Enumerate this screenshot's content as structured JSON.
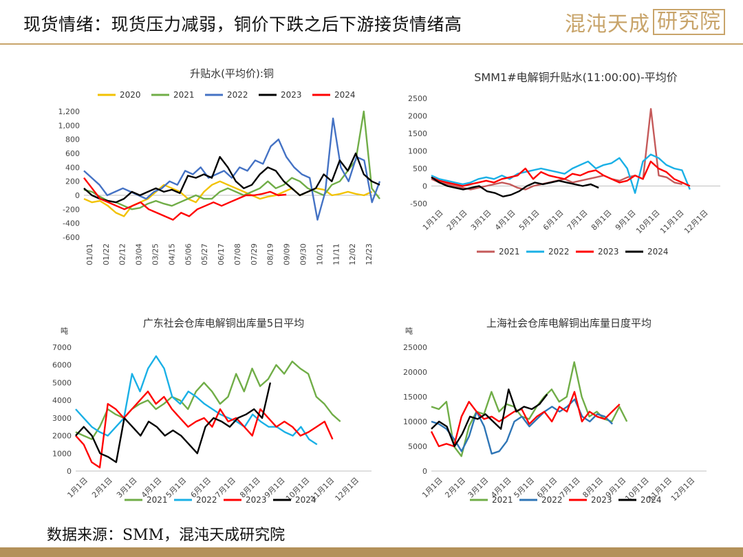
{
  "header": {
    "title": "现货情绪：现货压力减弱，铜价下跌之后下游接货情绪高",
    "logo_text": "混沌天成",
    "logo_box_text": "研究院"
  },
  "footer": {
    "source": "数据来源：SMM，混沌天成研究院"
  },
  "colors": {
    "accent": "#c8a46a",
    "footer_bar": "#b3915a"
  },
  "chart_data": [
    {
      "type": "line",
      "title": "升贴水(平均价):铜",
      "ylim": [
        -600,
        1200
      ],
      "yticks": [
        "1,200",
        "1,000",
        "800",
        "600",
        "400",
        "200",
        "0",
        "-200",
        "-400",
        "-600"
      ],
      "ytick_values": [
        1200,
        1000,
        800,
        600,
        400,
        200,
        0,
        -200,
        -400,
        -600
      ],
      "xticks": [
        "01/01",
        "01/22",
        "02/12",
        "03/04",
        "03/25",
        "04/15",
        "05/06",
        "05/27",
        "06/17",
        "07/08",
        "07/29",
        "08/19",
        "09/09",
        "09/30",
        "10/21",
        "11/11",
        "12/02",
        "12/23"
      ],
      "legend": "top",
      "series": [
        {
          "name": "2020",
          "color": "#f2c200",
          "values": [
            -50,
            -100,
            -80,
            -150,
            -250,
            -300,
            -150,
            -100,
            -50,
            50,
            150,
            100,
            50,
            -50,
            -100,
            50,
            150,
            200,
            150,
            100,
            50,
            0,
            -50,
            -20,
            0,
            50,
            100,
            0,
            50,
            100,
            80,
            0,
            20,
            50,
            20,
            0,
            50
          ]
        },
        {
          "name": "2021",
          "color": "#70ad47",
          "values": [
            80,
            50,
            -20,
            -80,
            -100,
            -150,
            -200,
            -180,
            -120,
            -80,
            -120,
            -150,
            -100,
            -50,
            0,
            -50,
            -50,
            50,
            100,
            50,
            0,
            50,
            100,
            200,
            100,
            150,
            250,
            200,
            100,
            50,
            0,
            150,
            200,
            350,
            500,
            1200,
            100,
            -50
          ]
        },
        {
          "name": "2022",
          "color": "#4472c4",
          "values": [
            350,
            250,
            150,
            0,
            50,
            100,
            50,
            0,
            -50,
            50,
            100,
            200,
            150,
            350,
            300,
            400,
            250,
            300,
            350,
            250,
            400,
            350,
            500,
            450,
            700,
            800,
            550,
            400,
            300,
            250,
            -350,
            50,
            1100,
            400,
            200,
            550,
            500,
            -100,
            200
          ]
        },
        {
          "name": "2023",
          "color": "#000000",
          "values": [
            100,
            0,
            -50,
            -80,
            -100,
            -50,
            50,
            0,
            50,
            100,
            50,
            80,
            30,
            280,
            250,
            300,
            250,
            550,
            400,
            200,
            100,
            150,
            300,
            400,
            350,
            200,
            100,
            0,
            50,
            100,
            300,
            200,
            500,
            350,
            600,
            300,
            200,
            150
          ]
        },
        {
          "name": "2024",
          "color": "#ff0000",
          "values": [
            250,
            100,
            -50,
            -100,
            -150,
            -200,
            -150,
            -100,
            -200,
            -250,
            -300,
            -350,
            -250,
            -300,
            -200,
            -150,
            -100,
            -150,
            -100,
            -50,
            0,
            0,
            20,
            50,
            0,
            10
          ]
        }
      ]
    },
    {
      "type": "line",
      "title": "SMM1#电解铜升贴水(11:00:00)-平均价",
      "ylim": [
        -500,
        2500
      ],
      "yticks": [
        "2500",
        "2000",
        "1500",
        "1000",
        "500",
        "0",
        "-500"
      ],
      "ytick_values": [
        2500,
        2000,
        1500,
        1000,
        500,
        0,
        -500
      ],
      "xticks": [
        "1月1日",
        "2月1日",
        "3月1日",
        "4月1日",
        "5月1日",
        "6月1日",
        "7月1日",
        "8月1日",
        "9月1日",
        "10月1日",
        "11月1日",
        "12月1日"
      ],
      "legend": "bottom",
      "series": [
        {
          "name": "2021",
          "color": "#c55a5a",
          "values": [
            200,
            100,
            50,
            0,
            -50,
            -100,
            -50,
            0,
            50,
            100,
            50,
            -50,
            -100,
            0,
            50,
            100,
            150,
            200,
            100,
            150,
            200,
            250,
            300,
            200,
            150,
            250,
            300,
            200,
            2200,
            300,
            250,
            100,
            50
          ]
        },
        {
          "name": "2022",
          "color": "#1ab0e6",
          "values": [
            300,
            200,
            150,
            100,
            50,
            100,
            200,
            250,
            200,
            300,
            200,
            350,
            400,
            450,
            500,
            450,
            400,
            350,
            500,
            600,
            700,
            500,
            600,
            650,
            800,
            500,
            -200,
            700,
            900,
            800,
            600,
            500,
            450,
            -100
          ]
        },
        {
          "name": "2023",
          "color": "#ff0000",
          "values": [
            250,
            150,
            100,
            50,
            0,
            50,
            100,
            150,
            100,
            200,
            250,
            300,
            500,
            200,
            400,
            300,
            250,
            200,
            350,
            300,
            400,
            450,
            300,
            200,
            100,
            150,
            300,
            200,
            700,
            500,
            400,
            200,
            100,
            0
          ]
        },
        {
          "name": "2024",
          "color": "#000000",
          "values": [
            250,
            100,
            0,
            -50,
            -100,
            -50,
            0,
            -150,
            -200,
            -300,
            -250,
            -150,
            0,
            100,
            50,
            100,
            150,
            100,
            50,
            0,
            50,
            -50
          ]
        }
      ]
    },
    {
      "type": "line",
      "title": "广东社会仓库电解铜出库量5日平均",
      "unit": "吨",
      "ylim": [
        0,
        7000
      ],
      "yticks": [
        "7000",
        "6000",
        "5000",
        "4000",
        "3000",
        "2000",
        "1000",
        "0"
      ],
      "ytick_values": [
        7000,
        6000,
        5000,
        4000,
        3000,
        2000,
        1000,
        0
      ],
      "xticks": [
        "1月1日",
        "2月1日",
        "3月1日",
        "4月1日",
        "5月1日",
        "6月1日",
        "7月1日",
        "8月1日",
        "9月1日",
        "10月1日",
        "11月1日",
        "12月1日"
      ],
      "legend": "bottom",
      "series": [
        {
          "name": "2021",
          "color": "#70ad47",
          "values": [
            2200,
            2000,
            1800,
            2500,
            3500,
            3200,
            3000,
            3500,
            3800,
            4000,
            3500,
            3800,
            4200,
            4000,
            3500,
            4500,
            5000,
            4500,
            3800,
            4200,
            5500,
            4500,
            5800,
            4800,
            5200,
            6000,
            5500,
            6200,
            5800,
            5500,
            4200,
            3800,
            3200,
            2800
          ]
        },
        {
          "name": "2022",
          "color": "#1ab0e6",
          "values": [
            3500,
            3000,
            2500,
            2200,
            2000,
            2500,
            3000,
            5500,
            4500,
            5800,
            6500,
            5800,
            4200,
            3800,
            4500,
            4200,
            3800,
            3500,
            3200,
            3000,
            2800,
            2500,
            3200,
            2800,
            2500,
            2500,
            2200,
            2000,
            2500,
            1800,
            1500
          ]
        },
        {
          "name": "2023",
          "color": "#ff0000",
          "values": [
            2000,
            1500,
            500,
            200,
            3800,
            3500,
            3000,
            3500,
            4000,
            4500,
            3800,
            4200,
            3500,
            3000,
            2500,
            2800,
            3000,
            2500,
            3500,
            2800,
            3000,
            2500,
            2000,
            3500,
            3000,
            2500,
            2800,
            2500,
            2000,
            2200,
            2500,
            2800,
            1800
          ]
        },
        {
          "name": "2024",
          "color": "#000000",
          "values": [
            2000,
            2500,
            2000,
            1000,
            800,
            500,
            3000,
            2500,
            2000,
            2800,
            2500,
            2000,
            2300,
            2000,
            1500,
            1000,
            2500,
            3000,
            2800,
            2500,
            3000,
            3200,
            3500,
            3000,
            5000
          ]
        }
      ]
    },
    {
      "type": "line",
      "title": "上海社会仓库电解铜出库量日度平均",
      "unit": "吨",
      "ylim": [
        0,
        25000
      ],
      "yticks": [
        "25000",
        "20000",
        "15000",
        "10000",
        "5000",
        "0"
      ],
      "ytick_values": [
        25000,
        20000,
        15000,
        10000,
        5000,
        0
      ],
      "xticks": [
        "1月1日",
        "2月1日",
        "3月1日",
        "4月1日",
        "5月1日",
        "6月1日",
        "7月1日",
        "8月1日",
        "9月1日",
        "10月1日",
        "11月1日",
        "12月1日"
      ],
      "legend": "bottom",
      "series": [
        {
          "name": "2021",
          "color": "#70ad47",
          "values": [
            13000,
            12500,
            14000,
            5000,
            3000,
            9000,
            12000,
            11500,
            16000,
            12000,
            13500,
            13000,
            11000,
            10500,
            13000,
            15000,
            16500,
            14000,
            15000,
            22000,
            15000,
            11000,
            12000,
            10500,
            10000,
            13000,
            10000
          ]
        },
        {
          "name": "2022",
          "color": "#2e75b6",
          "values": [
            10000,
            9500,
            8500,
            6500,
            4000,
            7000,
            12000,
            9000,
            3500,
            4000,
            6000,
            10000,
            11000,
            9000,
            10500,
            12000,
            13000,
            12000,
            13000,
            14500,
            11000,
            10000,
            11500,
            11000,
            9500
          ]
        },
        {
          "name": "2023",
          "color": "#ff0000",
          "values": [
            8000,
            5000,
            5500,
            5000,
            11000,
            14000,
            12000,
            10500,
            11000,
            10000,
            11000,
            12000,
            12500,
            9500,
            11000,
            12000,
            10000,
            13000,
            12000,
            16000,
            10000,
            12000,
            11000,
            10500,
            12000,
            13500
          ]
        },
        {
          "name": "2024",
          "color": "#000000",
          "values": [
            8500,
            10000,
            9000,
            5000,
            7500,
            11000,
            10500,
            11500,
            10000,
            8500,
            16500,
            12000,
            13000,
            12500,
            13500,
            15500
          ]
        }
      ]
    }
  ]
}
